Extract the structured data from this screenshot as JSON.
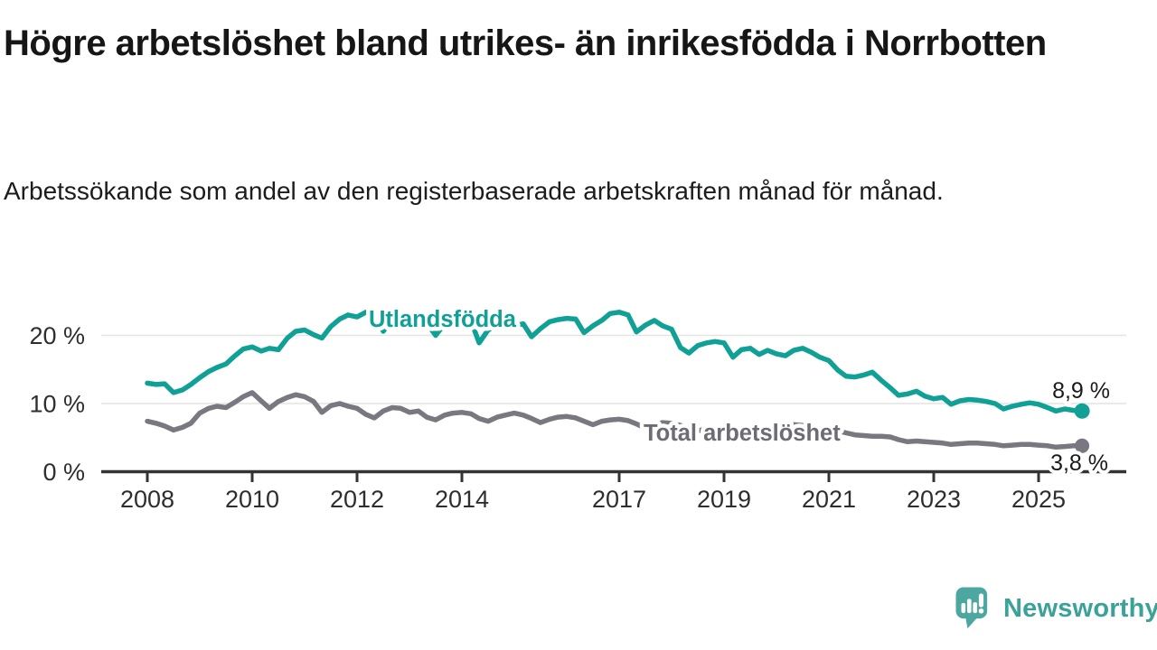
{
  "branding": {
    "logo_text": "Newsworthy",
    "logo_color": "#3ba29a",
    "icon_color": "#4ca7a0",
    "icon_name": "newsworthy-speech-bubble-chart-icon"
  },
  "chart_data": {
    "type": "line",
    "title": "Högre arbetslöshet bland utrikes- än inrikesfödda i Norrbotten",
    "subtitle": "Arbetssökande som andel av den registerbaserade arbetskraften månad för månad.",
    "grid": "horizontal",
    "legend_position": "inline-labels",
    "colors": {
      "grid": "#e4e4e4",
      "axis": "#333333",
      "axis_text": "#2e2e2e",
      "value_text": "#1a1a1a",
      "background": "#ffffff"
    },
    "x_axis": {
      "domain": [
        2008.0,
        2025.83
      ],
      "ticks": [
        2008,
        2010,
        2012,
        2014,
        2017,
        2019,
        2021,
        2023,
        2025
      ],
      "tick_labels": [
        "2008",
        "2010",
        "2012",
        "2014",
        "2017",
        "2019",
        "2021",
        "2023",
        "2025"
      ]
    },
    "y_axis": {
      "domain": [
        0,
        24
      ],
      "unit": "%",
      "ticks": [
        {
          "value": 20,
          "label": "20 %"
        },
        {
          "value": 10,
          "label": "10 %"
        },
        {
          "value": 0,
          "label": "0 %"
        }
      ]
    },
    "series": [
      {
        "id": "utlandsfodda",
        "name": "Utlandsfödda",
        "color": "#10a095",
        "end_value": 8.9,
        "end_label": "8,9 %",
        "points": [
          [
            2008.0,
            13.0
          ],
          [
            2008.17,
            12.8
          ],
          [
            2008.33,
            12.9
          ],
          [
            2008.5,
            11.6
          ],
          [
            2008.67,
            12.0
          ],
          [
            2008.83,
            12.8
          ],
          [
            2009.0,
            13.8
          ],
          [
            2009.17,
            14.7
          ],
          [
            2009.33,
            15.3
          ],
          [
            2009.5,
            15.8
          ],
          [
            2009.67,
            17.0
          ],
          [
            2009.83,
            18.0
          ],
          [
            2010.0,
            18.3
          ],
          [
            2010.17,
            17.7
          ],
          [
            2010.33,
            18.1
          ],
          [
            2010.5,
            17.9
          ],
          [
            2010.67,
            19.6
          ],
          [
            2010.83,
            20.6
          ],
          [
            2011.0,
            20.8
          ],
          [
            2011.17,
            20.1
          ],
          [
            2011.33,
            19.6
          ],
          [
            2011.5,
            21.3
          ],
          [
            2011.67,
            22.4
          ],
          [
            2011.83,
            23.0
          ],
          [
            2012.0,
            22.7
          ],
          [
            2012.17,
            23.4
          ],
          [
            2012.33,
            23.1
          ],
          [
            2012.5,
            20.6
          ],
          [
            2012.67,
            22.4
          ],
          [
            2012.83,
            22.9
          ],
          [
            2013.0,
            22.6
          ],
          [
            2013.17,
            23.0
          ],
          [
            2013.33,
            21.8
          ],
          [
            2013.5,
            20.0
          ],
          [
            2013.67,
            21.7
          ],
          [
            2013.83,
            22.2
          ],
          [
            2014.0,
            22.0
          ],
          [
            2014.17,
            22.2
          ],
          [
            2014.33,
            18.9
          ],
          [
            2014.5,
            20.8
          ],
          [
            2014.67,
            21.5
          ],
          [
            2014.83,
            21.8
          ],
          [
            2015.0,
            21.4
          ],
          [
            2015.17,
            21.7
          ],
          [
            2015.33,
            19.8
          ],
          [
            2015.5,
            21.0
          ],
          [
            2015.67,
            22.0
          ],
          [
            2015.83,
            22.3
          ],
          [
            2016.0,
            22.5
          ],
          [
            2016.17,
            22.4
          ],
          [
            2016.33,
            20.4
          ],
          [
            2016.5,
            21.4
          ],
          [
            2016.67,
            22.2
          ],
          [
            2016.83,
            23.2
          ],
          [
            2017.0,
            23.4
          ],
          [
            2017.17,
            23.0
          ],
          [
            2017.33,
            20.5
          ],
          [
            2017.5,
            21.5
          ],
          [
            2017.67,
            22.2
          ],
          [
            2017.83,
            21.4
          ],
          [
            2018.0,
            20.9
          ],
          [
            2018.17,
            18.2
          ],
          [
            2018.33,
            17.4
          ],
          [
            2018.5,
            18.5
          ],
          [
            2018.67,
            18.9
          ],
          [
            2018.83,
            19.1
          ],
          [
            2019.0,
            18.9
          ],
          [
            2019.17,
            16.8
          ],
          [
            2019.33,
            17.9
          ],
          [
            2019.5,
            18.1
          ],
          [
            2019.67,
            17.2
          ],
          [
            2019.83,
            17.8
          ],
          [
            2020.0,
            17.3
          ],
          [
            2020.17,
            17.0
          ],
          [
            2020.33,
            17.8
          ],
          [
            2020.5,
            18.1
          ],
          [
            2020.67,
            17.5
          ],
          [
            2020.83,
            16.8
          ],
          [
            2021.0,
            16.3
          ],
          [
            2021.17,
            14.9
          ],
          [
            2021.33,
            14.0
          ],
          [
            2021.5,
            13.9
          ],
          [
            2021.67,
            14.2
          ],
          [
            2021.83,
            14.6
          ],
          [
            2022.0,
            13.4
          ],
          [
            2022.17,
            12.3
          ],
          [
            2022.33,
            11.2
          ],
          [
            2022.5,
            11.4
          ],
          [
            2022.67,
            11.8
          ],
          [
            2022.83,
            11.1
          ],
          [
            2023.0,
            10.7
          ],
          [
            2023.17,
            10.9
          ],
          [
            2023.33,
            9.9
          ],
          [
            2023.5,
            10.4
          ],
          [
            2023.67,
            10.6
          ],
          [
            2023.83,
            10.5
          ],
          [
            2024.0,
            10.3
          ],
          [
            2024.17,
            10.0
          ],
          [
            2024.33,
            9.2
          ],
          [
            2024.5,
            9.6
          ],
          [
            2024.67,
            9.9
          ],
          [
            2024.83,
            10.1
          ],
          [
            2025.0,
            9.9
          ],
          [
            2025.17,
            9.4
          ],
          [
            2025.33,
            8.9
          ],
          [
            2025.5,
            9.2
          ],
          [
            2025.67,
            9.0
          ],
          [
            2025.83,
            8.9
          ]
        ]
      },
      {
        "id": "total",
        "name": "Total arbetslöshet",
        "color": "#7a7781",
        "label_color": "#6e6b74",
        "end_value": 3.8,
        "end_label": "3,8 %",
        "points": [
          [
            2008.0,
            7.4
          ],
          [
            2008.17,
            7.1
          ],
          [
            2008.33,
            6.7
          ],
          [
            2008.5,
            6.1
          ],
          [
            2008.67,
            6.5
          ],
          [
            2008.83,
            7.1
          ],
          [
            2009.0,
            8.6
          ],
          [
            2009.17,
            9.3
          ],
          [
            2009.33,
            9.6
          ],
          [
            2009.5,
            9.4
          ],
          [
            2009.67,
            10.2
          ],
          [
            2009.83,
            11.0
          ],
          [
            2010.0,
            11.6
          ],
          [
            2010.17,
            10.4
          ],
          [
            2010.33,
            9.3
          ],
          [
            2010.5,
            10.3
          ],
          [
            2010.67,
            10.9
          ],
          [
            2010.83,
            11.3
          ],
          [
            2011.0,
            11.0
          ],
          [
            2011.17,
            10.3
          ],
          [
            2011.33,
            8.7
          ],
          [
            2011.5,
            9.7
          ],
          [
            2011.67,
            10.0
          ],
          [
            2011.83,
            9.6
          ],
          [
            2012.0,
            9.3
          ],
          [
            2012.17,
            8.4
          ],
          [
            2012.33,
            7.9
          ],
          [
            2012.5,
            8.9
          ],
          [
            2012.67,
            9.4
          ],
          [
            2012.83,
            9.3
          ],
          [
            2013.0,
            8.7
          ],
          [
            2013.17,
            8.9
          ],
          [
            2013.33,
            8.0
          ],
          [
            2013.5,
            7.6
          ],
          [
            2013.67,
            8.3
          ],
          [
            2013.83,
            8.6
          ],
          [
            2014.0,
            8.7
          ],
          [
            2014.17,
            8.5
          ],
          [
            2014.33,
            7.8
          ],
          [
            2014.5,
            7.4
          ],
          [
            2014.67,
            8.0
          ],
          [
            2014.83,
            8.3
          ],
          [
            2015.0,
            8.6
          ],
          [
            2015.17,
            8.3
          ],
          [
            2015.33,
            7.8
          ],
          [
            2015.5,
            7.2
          ],
          [
            2015.67,
            7.7
          ],
          [
            2015.83,
            8.0
          ],
          [
            2016.0,
            8.1
          ],
          [
            2016.17,
            7.9
          ],
          [
            2016.33,
            7.4
          ],
          [
            2016.5,
            6.9
          ],
          [
            2016.67,
            7.4
          ],
          [
            2016.83,
            7.6
          ],
          [
            2017.0,
            7.7
          ],
          [
            2017.17,
            7.5
          ],
          [
            2017.33,
            7.0
          ],
          [
            2017.5,
            6.4
          ],
          [
            2017.67,
            6.9
          ],
          [
            2017.83,
            7.2
          ],
          [
            2018.0,
            7.1
          ],
          [
            2018.17,
            6.8
          ],
          [
            2018.33,
            6.4
          ],
          [
            2018.5,
            6.0
          ],
          [
            2018.67,
            6.3
          ],
          [
            2018.83,
            6.5
          ],
          [
            2019.0,
            6.6
          ],
          [
            2019.17,
            6.4
          ],
          [
            2019.33,
            6.1
          ],
          [
            2019.5,
            5.8
          ],
          [
            2019.67,
            6.0
          ],
          [
            2019.83,
            6.2
          ],
          [
            2020.0,
            6.3
          ],
          [
            2020.17,
            6.5
          ],
          [
            2020.33,
            6.9
          ],
          [
            2020.5,
            6.8
          ],
          [
            2020.67,
            6.6
          ],
          [
            2020.83,
            6.4
          ],
          [
            2021.0,
            6.3
          ],
          [
            2021.17,
            6.0
          ],
          [
            2021.33,
            5.7
          ],
          [
            2021.5,
            5.4
          ],
          [
            2021.67,
            5.3
          ],
          [
            2021.83,
            5.2
          ],
          [
            2022.0,
            5.2
          ],
          [
            2022.17,
            5.1
          ],
          [
            2022.33,
            4.7
          ],
          [
            2022.5,
            4.4
          ],
          [
            2022.67,
            4.5
          ],
          [
            2022.83,
            4.4
          ],
          [
            2023.0,
            4.3
          ],
          [
            2023.17,
            4.2
          ],
          [
            2023.33,
            4.0
          ],
          [
            2023.5,
            4.1
          ],
          [
            2023.67,
            4.2
          ],
          [
            2023.83,
            4.2
          ],
          [
            2024.0,
            4.1
          ],
          [
            2024.17,
            4.0
          ],
          [
            2024.33,
            3.8
          ],
          [
            2024.5,
            3.9
          ],
          [
            2024.67,
            4.0
          ],
          [
            2024.83,
            4.0
          ],
          [
            2025.0,
            3.9
          ],
          [
            2025.17,
            3.8
          ],
          [
            2025.33,
            3.6
          ],
          [
            2025.5,
            3.7
          ],
          [
            2025.67,
            3.8
          ],
          [
            2025.83,
            3.8
          ]
        ]
      }
    ]
  }
}
